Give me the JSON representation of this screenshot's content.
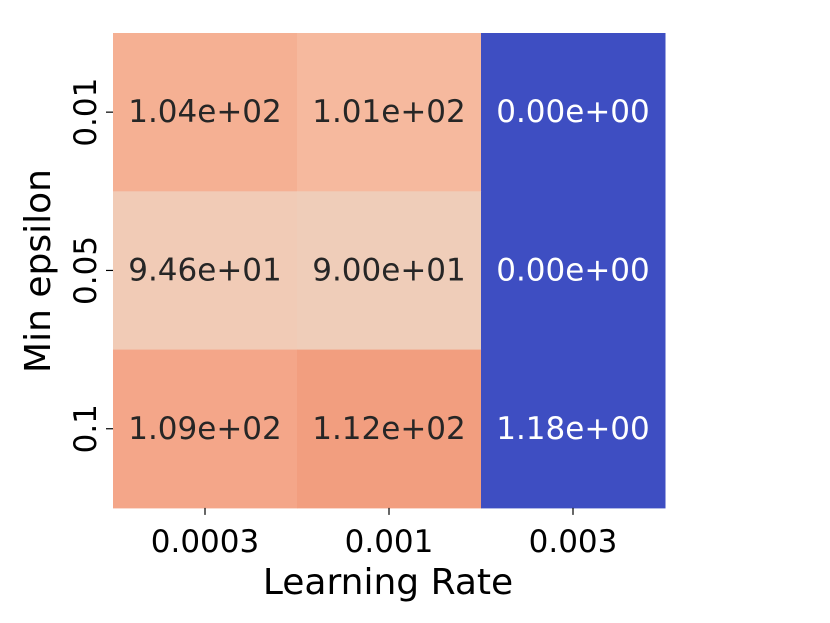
{
  "chart_data": {
    "type": "heatmap",
    "xlabel": "Learning Rate",
    "ylabel": "Min epsilon",
    "x_categories": [
      "0.0003",
      "0.001",
      "0.003"
    ],
    "y_categories": [
      "0.01",
      "0.05",
      "0.1"
    ],
    "values": [
      [
        104,
        101,
        0
      ],
      [
        94.6,
        90.0,
        0
      ],
      [
        109,
        112,
        1.18
      ]
    ],
    "cell_labels": [
      [
        "1.04e+02",
        "1.01e+02",
        "0.00e+00"
      ],
      [
        "9.46e+01",
        "9.00e+01",
        "0.00e+00"
      ],
      [
        "1.09e+02",
        "1.12e+02",
        "1.18e+00"
      ]
    ],
    "colors": {
      "high_dark": "#f29c7b",
      "high": "#f4a98a",
      "mid_high": "#f5b59a",
      "mid": "#f1c9b3",
      "light": "#efcdb9",
      "low": "#3e4ec2",
      "text_dark": "#262626",
      "text_light": "#ffffff"
    },
    "cell_colors": [
      [
        "#f5b093",
        "#f6b99e",
        "#3e4ec2"
      ],
      [
        "#f1cbb6",
        "#efcdb9",
        "#3e4ec2"
      ],
      [
        "#f4a689",
        "#f29e7f",
        "#3e4ec2"
      ]
    ],
    "text_colors": [
      [
        "#262626",
        "#262626",
        "#ffffff"
      ],
      [
        "#262626",
        "#262626",
        "#ffffff"
      ],
      [
        "#262626",
        "#262626",
        "#ffffff"
      ]
    ]
  }
}
